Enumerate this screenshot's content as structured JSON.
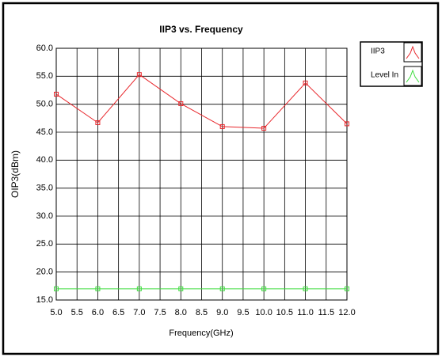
{
  "chart_data": {
    "type": "line",
    "title": "IIP3 vs. Frequency",
    "x_label": "Frequency(GHz)",
    "y_label": "OIP3(dBm)",
    "x": [
      5,
      6,
      7,
      8,
      9,
      10,
      11,
      12
    ],
    "series": [
      {
        "name": "IIP3",
        "color": "#e8262b",
        "values": [
          51.8,
          46.7,
          55.3,
          50.1,
          46.0,
          45.7,
          53.8,
          46.5
        ]
      },
      {
        "name": "Level In",
        "color": "#3ddc3d",
        "values": [
          17,
          17,
          17,
          17,
          17,
          17,
          17,
          17
        ]
      }
    ],
    "xlim": [
      5,
      12
    ],
    "xticks": [
      {
        "value": 5,
        "label": "5.0"
      },
      {
        "value": 5.5,
        "label": "5.5"
      },
      {
        "value": 6,
        "label": "6.0"
      },
      {
        "value": 6.5,
        "label": "6.5"
      },
      {
        "value": 7,
        "label": "7.0"
      },
      {
        "value": 7.5,
        "label": "7.5"
      },
      {
        "value": 8,
        "label": "8.0"
      },
      {
        "value": 8.5,
        "label": "8.5"
      },
      {
        "value": 9,
        "label": "9.0"
      },
      {
        "value": 9.5,
        "label": "9.5"
      },
      {
        "value": 10,
        "label": "10.0"
      },
      {
        "value": 10.5,
        "label": "10.5"
      },
      {
        "value": 11,
        "label": "11.0"
      },
      {
        "value": 11.5,
        "label": "11.5"
      },
      {
        "value": 12,
        "label": "12.0"
      }
    ],
    "ylim": [
      15,
      60
    ],
    "yticks": [
      {
        "value": 15,
        "label": "15.0"
      },
      {
        "value": 20,
        "label": "20.0"
      },
      {
        "value": 25,
        "label": "25.0"
      },
      {
        "value": 30,
        "label": "30.0"
      },
      {
        "value": 35,
        "label": "35.0"
      },
      {
        "value": 40,
        "label": "40.0"
      },
      {
        "value": 45,
        "label": "45.0"
      },
      {
        "value": 50,
        "label": "50.0"
      },
      {
        "value": 55,
        "label": "55.0"
      },
      {
        "value": 60,
        "label": "60.0"
      }
    ],
    "grid": true,
    "legend": "top-right"
  }
}
